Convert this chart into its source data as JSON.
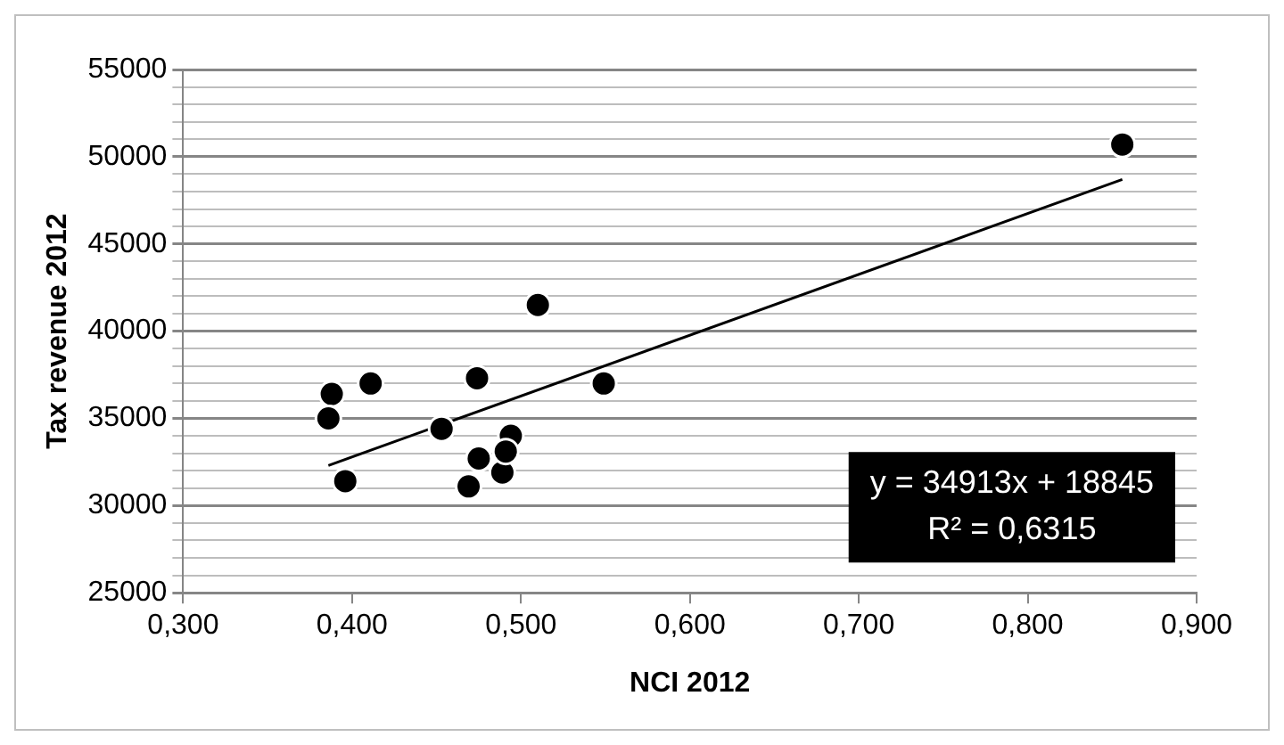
{
  "chart_data": {
    "type": "scatter",
    "xlabel": "NCI 2012",
    "ylabel": "Tax revenue 2012",
    "xlim": [
      0.3,
      0.9
    ],
    "xticks": [
      {
        "value": 0.3,
        "label": "0,300"
      },
      {
        "value": 0.4,
        "label": "0,400"
      },
      {
        "value": 0.5,
        "label": "0,500"
      },
      {
        "value": 0.6,
        "label": "0,600"
      },
      {
        "value": 0.7,
        "label": "0,700"
      },
      {
        "value": 0.8,
        "label": "0,800"
      },
      {
        "value": 0.9,
        "label": "0,900"
      }
    ],
    "ylim": [
      25000,
      55000
    ],
    "yticks": [
      25000,
      {
        "value": 26000,
        "label": null
      },
      {
        "value": 27000,
        "label": null
      },
      {
        "value": 28000,
        "label": null
      },
      {
        "value": 29000,
        "label": null
      },
      30000,
      {
        "value": 31000,
        "label": null
      },
      {
        "value": 32000,
        "label": null
      },
      {
        "value": 33000,
        "label": null
      },
      {
        "value": 34000,
        "label": null
      },
      35000,
      {
        "value": 36000,
        "label": null
      },
      {
        "value": 37000,
        "label": null
      },
      {
        "value": 38000,
        "label": null
      },
      {
        "value": 39000,
        "label": null
      },
      40000,
      {
        "value": 41000,
        "label": null
      },
      {
        "value": 42000,
        "label": null
      },
      {
        "value": 43000,
        "label": null
      },
      {
        "value": 44000,
        "label": null
      },
      45000,
      {
        "value": 46000,
        "label": null
      },
      {
        "value": 47000,
        "label": null
      },
      {
        "value": 48000,
        "label": null
      },
      {
        "value": 49000,
        "label": null
      },
      50000,
      {
        "value": 51000,
        "label": null
      },
      {
        "value": 52000,
        "label": null
      },
      {
        "value": 53000,
        "label": null
      },
      {
        "value": 54000,
        "label": null
      },
      55000
    ],
    "grid": "y",
    "marker": "circle",
    "legend": false,
    "series": [
      {
        "color": "#000000",
        "x": [
          0.388,
          0.386,
          0.396,
          0.411,
          0.453,
          0.474,
          0.475,
          0.469,
          0.489,
          0.494,
          0.491,
          0.51,
          0.549,
          0.856
        ],
        "values": [
          36400,
          35000,
          31400,
          37000,
          34400,
          37300,
          32700,
          31100,
          31900,
          34000,
          33100,
          41500,
          37000,
          50700
        ]
      },
      {
        "type": "line",
        "color": "#000000",
        "marker": "none",
        "x": [
          0.386,
          0.856
        ],
        "values": [
          32300,
          48700
        ]
      }
    ],
    "annotations": [
      "y = 34913x + 18845",
      "R² = 0,6315"
    ]
  }
}
